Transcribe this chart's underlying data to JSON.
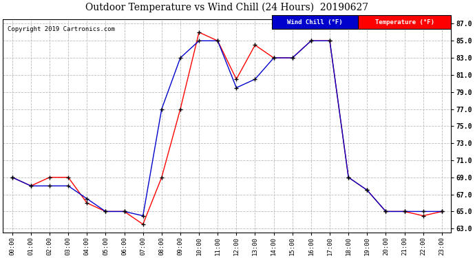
{
  "title": "Outdoor Temperature vs Wind Chill (24 Hours)  20190627",
  "copyright": "Copyright 2019 Cartronics.com",
  "x_labels": [
    "00:00",
    "01:00",
    "02:00",
    "03:00",
    "04:00",
    "05:00",
    "06:00",
    "07:00",
    "08:00",
    "09:00",
    "10:00",
    "11:00",
    "12:00",
    "13:00",
    "14:00",
    "15:00",
    "16:00",
    "17:00",
    "18:00",
    "19:00",
    "20:00",
    "21:00",
    "22:00",
    "23:00"
  ],
  "temperature": [
    69.0,
    68.0,
    69.0,
    69.0,
    66.0,
    65.0,
    65.0,
    63.5,
    69.0,
    77.0,
    86.0,
    85.0,
    80.5,
    84.5,
    83.0,
    83.0,
    85.0,
    85.0,
    69.0,
    67.5,
    65.0,
    65.0,
    64.5,
    65.0
  ],
  "wind_chill": [
    69.0,
    68.0,
    68.0,
    68.0,
    66.5,
    65.0,
    65.0,
    64.5,
    77.0,
    83.0,
    85.0,
    85.0,
    79.5,
    80.5,
    83.0,
    83.0,
    85.0,
    85.0,
    69.0,
    67.5,
    65.0,
    65.0,
    65.0,
    65.0
  ],
  "temp_color": "#ff0000",
  "wind_chill_color": "#0000cc",
  "ylim_min": 63.0,
  "ylim_max": 87.0,
  "ytick_step": 2.0,
  "background_color": "#ffffff",
  "grid_color": "#aaaaaa",
  "legend_wind_chill_bg": "#0000cc",
  "legend_temp_bg": "#ff0000",
  "legend_wind_chill_text": "Wind Chill (°F)",
  "legend_temp_text": "Temperature (°F)"
}
